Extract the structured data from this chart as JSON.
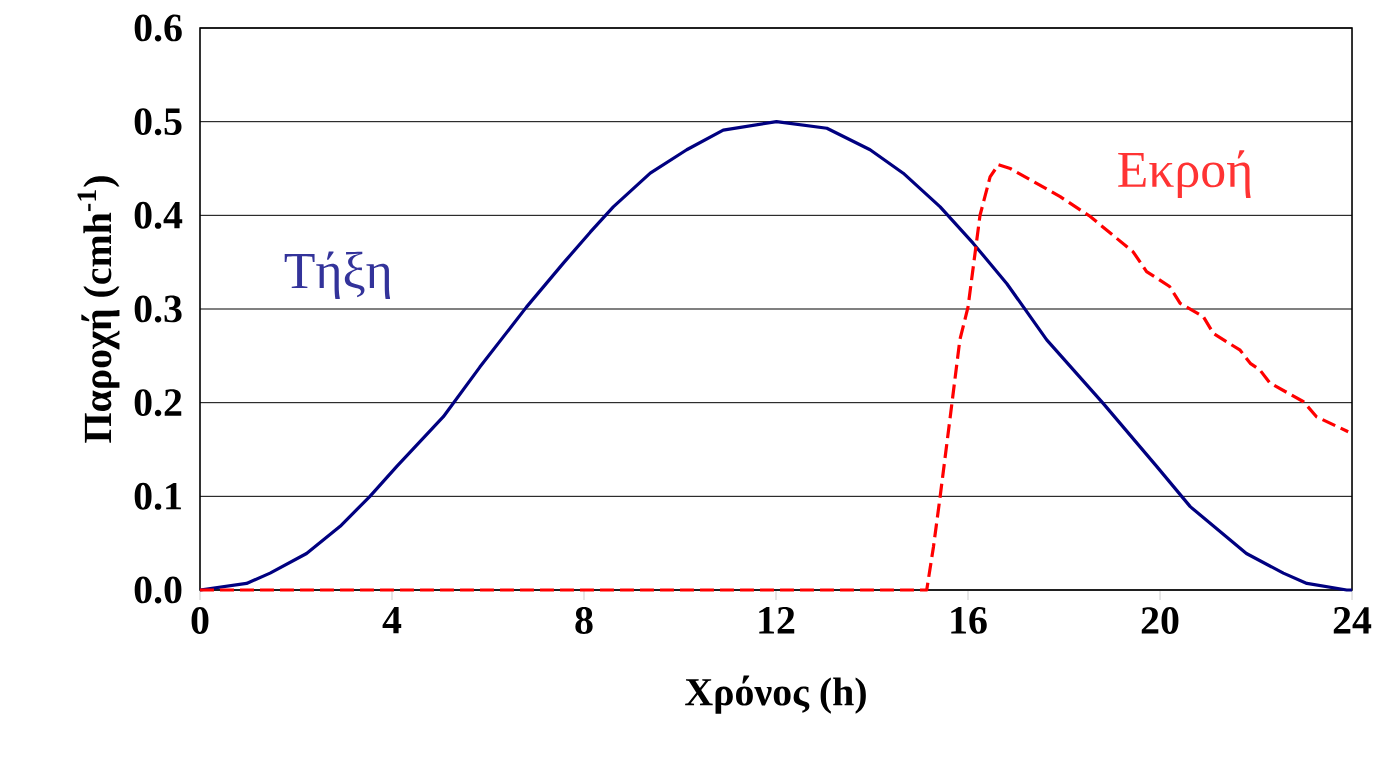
{
  "chart_data": {
    "type": "line",
    "xlabel": "Χρόνος (h)",
    "ylabel": "Παροχή (cmh$^{-1}$)",
    "xlim": [
      0,
      24
    ],
    "ylim": [
      0,
      0.6
    ],
    "xticks": [
      0,
      4,
      8,
      12,
      16,
      20,
      24
    ],
    "yticks": [
      {
        "value": 0,
        "label": "0.0"
      },
      0.1,
      0.2,
      0.3,
      0.4,
      0.5,
      0.6
    ],
    "grid": "y",
    "series": [
      {
        "name": "Τήξη",
        "color": "#000080",
        "line_style": "solid",
        "x": [
          0,
          0.97,
          1.46,
          2.22,
          2.92,
          3.54,
          4.1,
          5.07,
          5.83,
          6.8,
          7.57,
          8.13,
          8.61,
          9.38,
          10.14,
          10.9,
          12.01,
          13.06,
          13.96,
          14.65,
          15.42,
          16.11,
          16.81,
          17.64,
          18.82,
          19.93,
          20.63,
          21.8,
          22.57,
          23.06,
          23.89,
          24
        ],
        "values": [
          0,
          0.007,
          0.018,
          0.039,
          0.068,
          0.1,
          0.132,
          0.185,
          0.238,
          0.302,
          0.349,
          0.382,
          0.409,
          0.445,
          0.47,
          0.491,
          0.5,
          0.493,
          0.47,
          0.445,
          0.409,
          0.37,
          0.327,
          0.267,
          0.199,
          0.132,
          0.089,
          0.039,
          0.018,
          0.007,
          0,
          0
        ]
      },
      {
        "name": "Εκροή",
        "color": "#ff0000",
        "line_style": "dashed",
        "x": [
          0,
          15.14,
          15.28,
          15.42,
          15.63,
          15.83,
          16.0,
          16.25,
          16.46,
          16.63,
          16.88,
          17.92,
          18.54,
          19.44,
          19.72,
          20.2,
          20.42,
          20.9,
          21.11,
          21.67,
          21.88,
          22.08,
          22.29,
          22.99,
          23.26,
          23.92
        ],
        "values": [
          0,
          0,
          0.046,
          0.1,
          0.185,
          0.267,
          0.302,
          0.4,
          0.441,
          0.454,
          0.45,
          0.42,
          0.399,
          0.361,
          0.34,
          0.324,
          0.306,
          0.292,
          0.274,
          0.256,
          0.242,
          0.235,
          0.221,
          0.201,
          0.185,
          0.169
        ]
      }
    ]
  }
}
